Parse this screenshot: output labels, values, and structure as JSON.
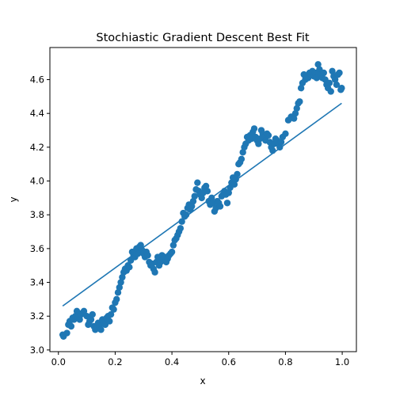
{
  "chart_data": {
    "type": "scatter",
    "title": "Stochiastic Gradient Descent Best Fit",
    "xlabel": "x",
    "ylabel": "y",
    "xlim": [
      -0.03,
      1.05
    ],
    "ylim": [
      2.99,
      4.79
    ],
    "xticks": [
      0.0,
      0.2,
      0.4,
      0.6,
      0.8,
      1.0
    ],
    "yticks": [
      3.0,
      3.2,
      3.4,
      3.6,
      3.8,
      4.0,
      4.2,
      4.4,
      4.6
    ],
    "grid": false,
    "series": [
      {
        "kind": "scatter",
        "color": "#1f77b4",
        "points": [
          [
            0.015,
            3.09
          ],
          [
            0.018,
            3.08
          ],
          [
            0.03,
            3.1
          ],
          [
            0.035,
            3.15
          ],
          [
            0.04,
            3.17
          ],
          [
            0.045,
            3.14
          ],
          [
            0.05,
            3.19
          ],
          [
            0.055,
            3.18
          ],
          [
            0.06,
            3.2
          ],
          [
            0.065,
            3.23
          ],
          [
            0.07,
            3.19
          ],
          [
            0.075,
            3.18
          ],
          [
            0.08,
            3.21
          ],
          [
            0.085,
            3.22
          ],
          [
            0.09,
            3.23
          ],
          [
            0.1,
            3.2
          ],
          [
            0.105,
            3.15
          ],
          [
            0.11,
            3.17
          ],
          [
            0.115,
            3.18
          ],
          [
            0.12,
            3.21
          ],
          [
            0.125,
            3.14
          ],
          [
            0.13,
            3.12
          ],
          [
            0.135,
            3.13
          ],
          [
            0.14,
            3.16
          ],
          [
            0.145,
            3.14
          ],
          [
            0.15,
            3.12
          ],
          [
            0.155,
            3.18
          ],
          [
            0.16,
            3.16
          ],
          [
            0.165,
            3.15
          ],
          [
            0.17,
            3.19
          ],
          [
            0.175,
            3.2
          ],
          [
            0.18,
            3.17
          ],
          [
            0.185,
            3.21
          ],
          [
            0.19,
            3.25
          ],
          [
            0.195,
            3.24
          ],
          [
            0.2,
            3.28
          ],
          [
            0.205,
            3.3
          ],
          [
            0.21,
            3.34
          ],
          [
            0.215,
            3.37
          ],
          [
            0.22,
            3.4
          ],
          [
            0.225,
            3.43
          ],
          [
            0.23,
            3.46
          ],
          [
            0.235,
            3.48
          ],
          [
            0.24,
            3.47
          ],
          [
            0.245,
            3.5
          ],
          [
            0.25,
            3.49
          ],
          [
            0.255,
            3.53
          ],
          [
            0.26,
            3.58
          ],
          [
            0.265,
            3.56
          ],
          [
            0.27,
            3.55
          ],
          [
            0.275,
            3.6
          ],
          [
            0.28,
            3.57
          ],
          [
            0.285,
            3.61
          ],
          [
            0.29,
            3.62
          ],
          [
            0.295,
            3.59
          ],
          [
            0.3,
            3.57
          ],
          [
            0.305,
            3.55
          ],
          [
            0.31,
            3.58
          ],
          [
            0.315,
            3.56
          ],
          [
            0.32,
            3.52
          ],
          [
            0.325,
            3.5
          ],
          [
            0.33,
            3.51
          ],
          [
            0.335,
            3.48
          ],
          [
            0.34,
            3.46
          ],
          [
            0.345,
            3.52
          ],
          [
            0.35,
            3.55
          ],
          [
            0.355,
            3.5
          ],
          [
            0.36,
            3.52
          ],
          [
            0.365,
            3.56
          ],
          [
            0.37,
            3.54
          ],
          [
            0.375,
            3.55
          ],
          [
            0.38,
            3.52
          ],
          [
            0.385,
            3.54
          ],
          [
            0.39,
            3.56
          ],
          [
            0.395,
            3.57
          ],
          [
            0.4,
            3.58
          ],
          [
            0.405,
            3.62
          ],
          [
            0.41,
            3.65
          ],
          [
            0.415,
            3.66
          ],
          [
            0.42,
            3.68
          ],
          [
            0.425,
            3.7
          ],
          [
            0.43,
            3.72
          ],
          [
            0.435,
            3.76
          ],
          [
            0.44,
            3.81
          ],
          [
            0.445,
            3.79
          ],
          [
            0.45,
            3.8
          ],
          [
            0.455,
            3.84
          ],
          [
            0.46,
            3.86
          ],
          [
            0.465,
            3.83
          ],
          [
            0.47,
            3.85
          ],
          [
            0.475,
            3.88
          ],
          [
            0.48,
            3.91
          ],
          [
            0.485,
            3.95
          ],
          [
            0.49,
            3.99
          ],
          [
            0.495,
            3.94
          ],
          [
            0.5,
            3.92
          ],
          [
            0.505,
            3.9
          ],
          [
            0.51,
            3.93
          ],
          [
            0.515,
            3.96
          ],
          [
            0.52,
            3.97
          ],
          [
            0.525,
            3.94
          ],
          [
            0.53,
            3.88
          ],
          [
            0.535,
            3.86
          ],
          [
            0.54,
            3.9
          ],
          [
            0.545,
            3.87
          ],
          [
            0.55,
            3.82
          ],
          [
            0.555,
            3.84
          ],
          [
            0.56,
            3.88
          ],
          [
            0.565,
            3.87
          ],
          [
            0.57,
            3.85
          ],
          [
            0.575,
            3.91
          ],
          [
            0.58,
            3.92
          ],
          [
            0.585,
            3.94
          ],
          [
            0.59,
            3.92
          ],
          [
            0.595,
            3.87
          ],
          [
            0.6,
            3.93
          ],
          [
            0.605,
            3.96
          ],
          [
            0.61,
            3.99
          ],
          [
            0.615,
            4.02
          ],
          [
            0.62,
            3.98
          ],
          [
            0.625,
            4.01
          ],
          [
            0.63,
            4.04
          ],
          [
            0.635,
            4.1
          ],
          [
            0.64,
            4.11
          ],
          [
            0.645,
            4.13
          ],
          [
            0.65,
            4.17
          ],
          [
            0.655,
            4.2
          ],
          [
            0.66,
            4.22
          ],
          [
            0.665,
            4.26
          ],
          [
            0.67,
            4.24
          ],
          [
            0.675,
            4.27
          ],
          [
            0.68,
            4.25
          ],
          [
            0.685,
            4.29
          ],
          [
            0.69,
            4.31
          ],
          [
            0.695,
            4.26
          ],
          [
            0.7,
            4.24
          ],
          [
            0.705,
            4.22
          ],
          [
            0.71,
            4.25
          ],
          [
            0.715,
            4.3
          ],
          [
            0.72,
            4.28
          ],
          [
            0.725,
            4.26
          ],
          [
            0.73,
            4.24
          ],
          [
            0.735,
            4.28
          ],
          [
            0.74,
            4.27
          ],
          [
            0.745,
            4.23
          ],
          [
            0.75,
            4.2
          ],
          [
            0.755,
            4.18
          ],
          [
            0.76,
            4.22
          ],
          [
            0.765,
            4.25
          ],
          [
            0.77,
            4.24
          ],
          [
            0.775,
            4.22
          ],
          [
            0.78,
            4.2
          ],
          [
            0.785,
            4.23
          ],
          [
            0.79,
            4.26
          ],
          [
            0.8,
            4.28
          ],
          [
            0.81,
            4.36
          ],
          [
            0.82,
            4.38
          ],
          [
            0.83,
            4.37
          ],
          [
            0.835,
            4.4
          ],
          [
            0.84,
            4.43
          ],
          [
            0.845,
            4.46
          ],
          [
            0.85,
            4.47
          ],
          [
            0.855,
            4.55
          ],
          [
            0.86,
            4.58
          ],
          [
            0.865,
            4.63
          ],
          [
            0.87,
            4.6
          ],
          [
            0.875,
            4.62
          ],
          [
            0.88,
            4.61
          ],
          [
            0.885,
            4.64
          ],
          [
            0.89,
            4.63
          ],
          [
            0.895,
            4.65
          ],
          [
            0.9,
            4.62
          ],
          [
            0.905,
            4.64
          ],
          [
            0.91,
            4.61
          ],
          [
            0.915,
            4.69
          ],
          [
            0.92,
            4.66
          ],
          [
            0.925,
            4.63
          ],
          [
            0.93,
            4.61
          ],
          [
            0.935,
            4.64
          ],
          [
            0.94,
            4.6
          ],
          [
            0.945,
            4.57
          ],
          [
            0.95,
            4.55
          ],
          [
            0.955,
            4.58
          ],
          [
            0.96,
            4.53
          ],
          [
            0.965,
            4.65
          ],
          [
            0.97,
            4.62
          ],
          [
            0.975,
            4.6
          ],
          [
            0.98,
            4.57
          ],
          [
            0.985,
            4.63
          ],
          [
            0.99,
            4.64
          ],
          [
            0.995,
            4.54
          ],
          [
            0.998,
            4.55
          ]
        ]
      },
      {
        "kind": "line",
        "color": "#1f77b4",
        "x": [
          0.015,
          0.998
        ],
        "y": [
          3.26,
          4.46
        ]
      }
    ]
  }
}
